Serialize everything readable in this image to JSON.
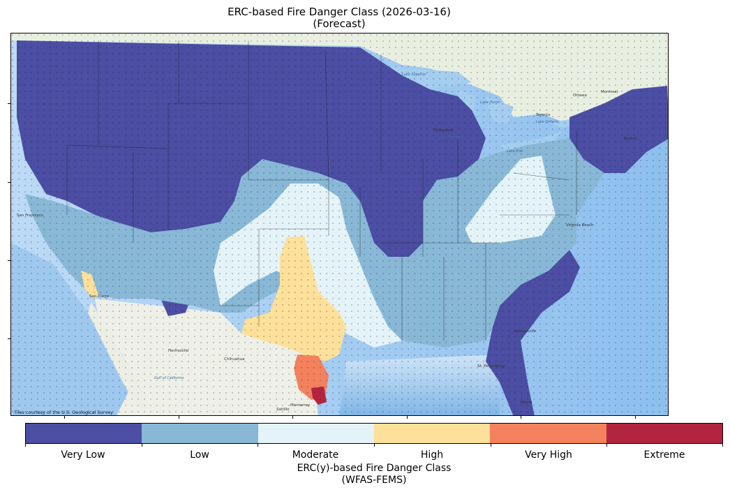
{
  "title": "ERC-based Fire Danger Class (2026-03-16)",
  "subtitle": "(Forecast)",
  "attribution": "Tiles courtesy of the U.S. Geological Survey",
  "map_labels": {
    "hermosillo": "Hermosillo",
    "chihuahua": "Chihuahua",
    "monterrey": "Monterrey",
    "saltillo": "Saltillo",
    "gulf_of_california": "Gulf of California",
    "jacksonville": "Jacksonville",
    "st_petersburg": "St. Petersburg",
    "virginia_beach": "Virginia Beach",
    "milwaukee": "Milwaukee",
    "lake_michigan": "Lake Michigan",
    "lake_huron": "Lake Huron",
    "lake_ontario": "Lake Ontario",
    "lake_erie": "Lake Erie",
    "lake_superior": "Lake Superior",
    "ottawa": "Ottawa",
    "montreal": "Montreal",
    "toronto": "Toronto",
    "san_francisco": "San Francisco",
    "san_diego": "San Diego",
    "miami": "Miami",
    "boston": "Boston"
  },
  "colors": {
    "very_low": "#4b4ea2",
    "low": "#88b8d6",
    "moderate": "#e4f3f7",
    "high": "#fde099",
    "very_high": "#f3815e",
    "extreme": "#b3243f",
    "ocean": "#b8d8f4",
    "land": "#eef1e6"
  },
  "legend": {
    "title": "ERC(y)-based Fire Danger Class",
    "subtitle": "(WFAS-FEMS)",
    "classes": [
      "Very Low",
      "Low",
      "Moderate",
      "High",
      "Very High",
      "Extreme"
    ]
  }
}
